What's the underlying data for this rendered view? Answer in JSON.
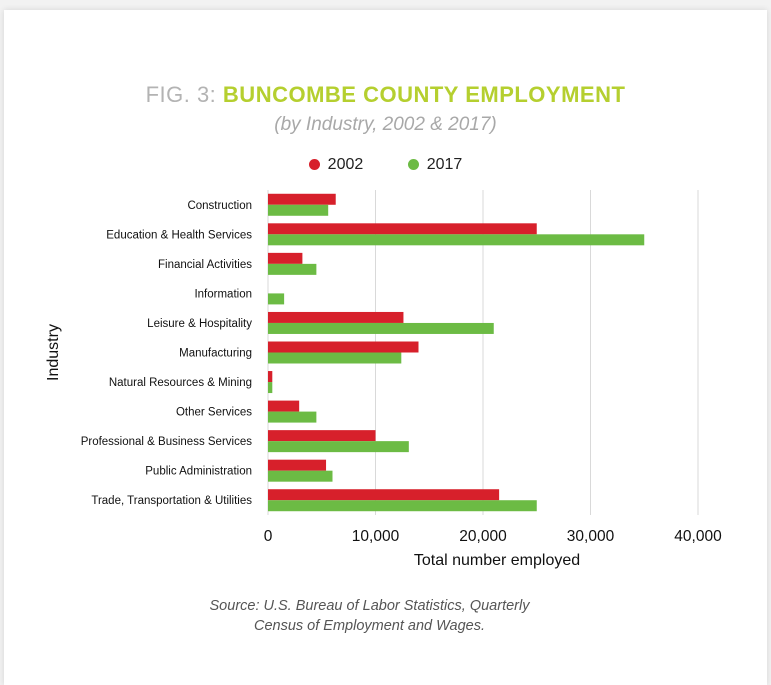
{
  "title_prefix": "FIG. 3: ",
  "title_main": "BUNCOMBE COUNTY EMPLOYMENT",
  "subtitle": "(by Industry, 2002 & 2017)",
  "source_line1": "Source: U.S. Bureau of Labor Statistics, Quarterly",
  "source_line2": "Census of Employment and Wages.",
  "chart_data": {
    "type": "bar",
    "orientation": "horizontal",
    "xlabel": "Total number employed",
    "ylabel": "Industry",
    "xlim": [
      0,
      40000
    ],
    "xticks": [
      0,
      10000,
      20000,
      30000,
      40000
    ],
    "xtick_labels": [
      "0",
      "10,000",
      "20,000",
      "30,000",
      "40,000"
    ],
    "grid": true,
    "legend_position": "top",
    "categories": [
      "Construction",
      "Education & Health Services",
      "Financial Activities",
      "Information",
      "Leisure & Hospitality",
      "Manufacturing",
      "Natural Resources & Mining",
      "Other Services",
      "Professional & Business Services",
      "Public Administration",
      "Trade, Transportation & Utilities"
    ],
    "series": [
      {
        "name": "2002",
        "color": "#d7202b",
        "values": [
          6300,
          25000,
          3200,
          0,
          12600,
          14000,
          400,
          2900,
          10000,
          5400,
          21500
        ]
      },
      {
        "name": "2017",
        "color": "#6cbb44",
        "values": [
          5600,
          35000,
          4500,
          1500,
          21000,
          12400,
          400,
          4500,
          13100,
          6000,
          25000
        ]
      }
    ]
  }
}
